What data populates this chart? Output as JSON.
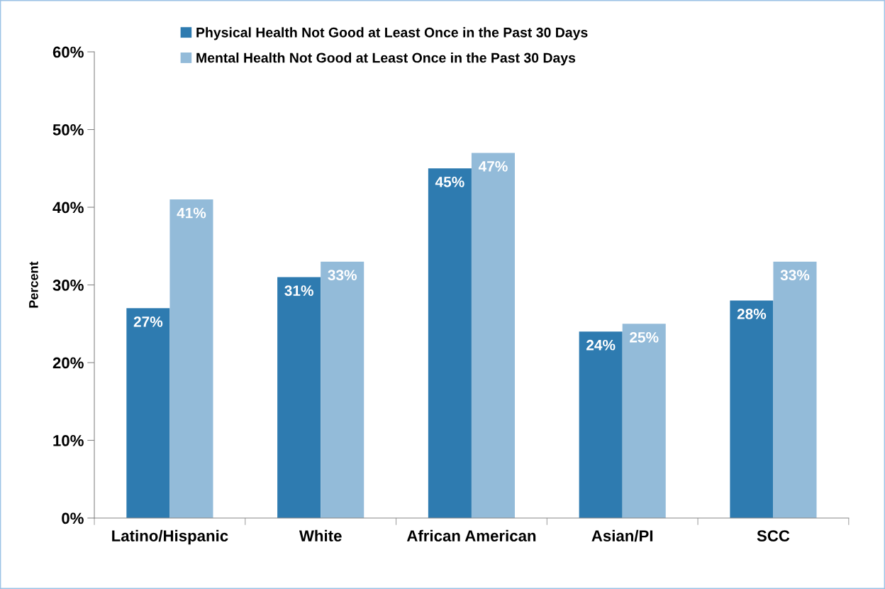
{
  "chart_data": {
    "type": "bar",
    "ylabel": "Percent",
    "categories": [
      "Latino/Hispanic",
      "White",
      "African American",
      "Asian/PI",
      "SCC"
    ],
    "series": [
      {
        "name": "Physical Health Not Good at Least Once in the Past 30 Days",
        "color": "#2e7bb0",
        "values": [
          27,
          31,
          45,
          24,
          28
        ],
        "value_labels": [
          "27%",
          "31%",
          "45%",
          "24%",
          "28%"
        ]
      },
      {
        "name": "Mental Health Not Good at Least Once in the Past 30 Days",
        "color": "#93bbd9",
        "values": [
          41,
          33,
          47,
          25,
          33
        ],
        "value_labels": [
          "41%",
          "33%",
          "47%",
          "25%",
          "33%"
        ]
      }
    ],
    "ylim": [
      0,
      60
    ],
    "yticks": [
      {
        "value": 0,
        "label": "0%"
      },
      {
        "value": 10,
        "label": "10%"
      },
      {
        "value": 20,
        "label": "20%"
      },
      {
        "value": 30,
        "label": "30%"
      },
      {
        "value": 40,
        "label": "40%"
      },
      {
        "value": 50,
        "label": "50%"
      },
      {
        "value": 60,
        "label": "60%"
      }
    ],
    "grid": false,
    "legend": "top"
  }
}
